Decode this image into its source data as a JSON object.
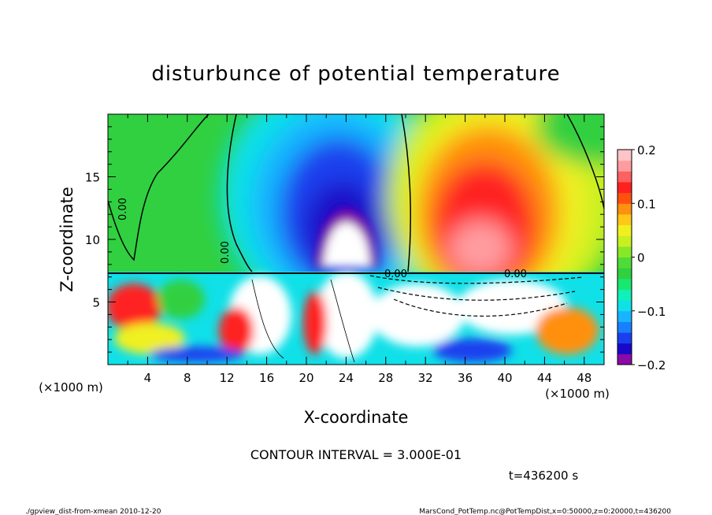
{
  "chart_data": {
    "type": "heatmap",
    "title": "disturbunce of potential temperature",
    "xlabel": "X-coordinate",
    "ylabel": "Z-coordinate",
    "x_unit_label": "(×1000 m)",
    "z_unit_label": "(×1000 m)",
    "xlim": [
      0,
      50
    ],
    "ylim": [
      0,
      20
    ],
    "x_ticks": [
      "4",
      "8",
      "12",
      "16",
      "20",
      "24",
      "28",
      "32",
      "36",
      "40",
      "44",
      "48"
    ],
    "y_ticks": [
      "5",
      "10",
      "15"
    ],
    "colorbar": {
      "range": [
        -0.2,
        0.2
      ],
      "tick_labels": [
        "0.2",
        "0.1",
        "0",
        "−0.1",
        "−0.2"
      ],
      "colors": [
        "#8a0aa8",
        "#1a08c8",
        "#1a40ee",
        "#1880ff",
        "#18b4ff",
        "#10e0e8",
        "#10f0b8",
        "#18e870",
        "#30d040",
        "#50dc38",
        "#88e828",
        "#c8f020",
        "#f0f020",
        "#ffc818",
        "#ff9010",
        "#ff5010",
        "#ff2020",
        "#ff6060",
        "#ff9ca0",
        "#ffc4c8"
      ]
    },
    "contour_labels": [
      "0.00",
      "0.00",
      "0.00",
      "0.00"
    ],
    "contour_interval": "CONTOUR INTERVAL = 3.000E-01",
    "time_label": "t=436200 s",
    "footer_left": "./gpview_dist-from-xmean  2010-12-20",
    "footer_right": "MarsCond_PotTemp.nc@PotTempDist,x=0:50000,z=0:20000,t=436200"
  }
}
